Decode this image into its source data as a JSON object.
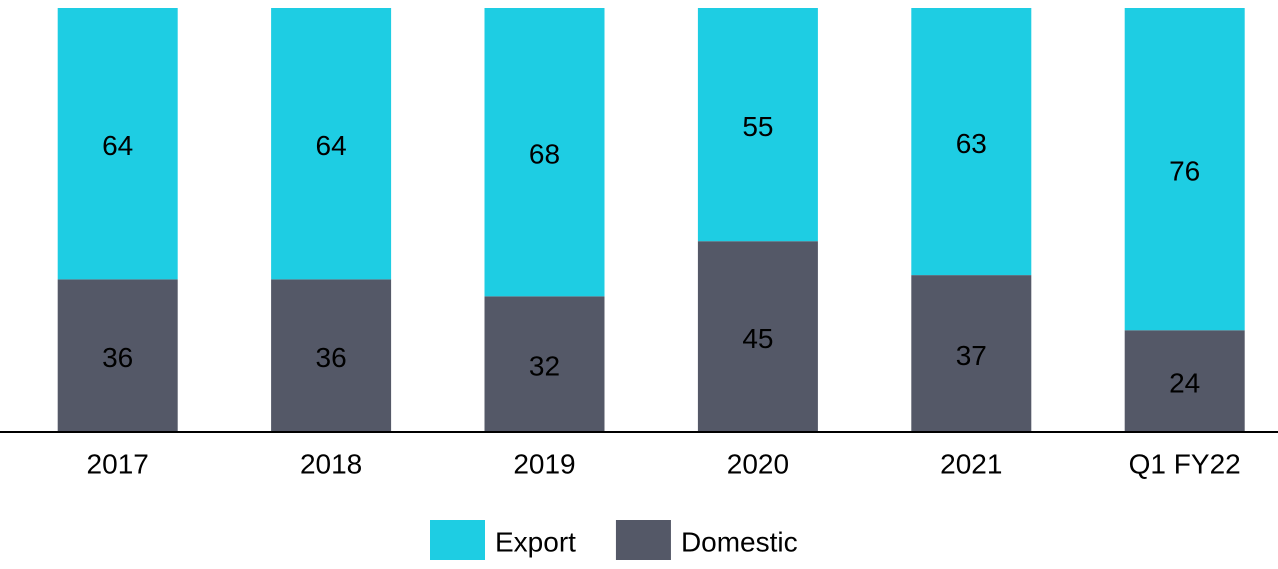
{
  "chart_data": {
    "type": "stacked_bar",
    "categories": [
      "2017",
      "2018",
      "2019",
      "2020",
      "2021",
      "Q1 FY22"
    ],
    "series": [
      {
        "name": "Domestic",
        "color": "#545867",
        "values": [
          36,
          36,
          32,
          45,
          37,
          24
        ]
      },
      {
        "name": "Export",
        "color": "#1ecde3",
        "values": [
          64,
          64,
          68,
          55,
          63,
          76
        ]
      }
    ],
    "legend": "bottom"
  }
}
